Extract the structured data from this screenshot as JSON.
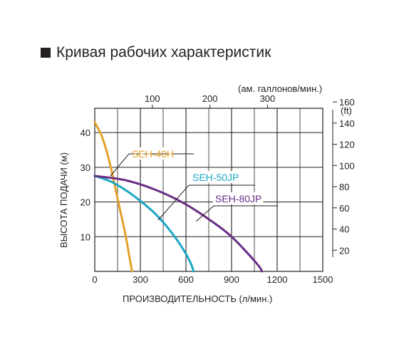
{
  "page": {
    "title": "Кривая рабочих характеристик"
  },
  "chart_data": {
    "type": "line",
    "title": "Кривая рабочих характеристик",
    "xlabel": "ПРОИЗВОДИТЕЛЬНОСТЬ (л/мин.)",
    "ylabel": "ВЫСОТА ПОДАЧИ (м)",
    "x2label": "(ам. галлонов/мин.)",
    "y2label": "(ft)",
    "xlim": [
      0,
      1500
    ],
    "ylim": [
      0,
      47
    ],
    "x2lim": [
      0,
      396
    ],
    "y2lim": [
      0,
      154
    ],
    "x_ticks": [
      "0",
      "300",
      "600",
      "900",
      "1200",
      "1500"
    ],
    "y_ticks": [
      "10",
      "20",
      "30",
      "40"
    ],
    "x2_ticks": [
      "100",
      "200",
      "300"
    ],
    "y2_ticks": [
      "20",
      "40",
      "60",
      "80",
      "100",
      "120",
      "140",
      "160"
    ],
    "grid": true,
    "series": [
      {
        "name": "SEH-40H",
        "color": "#e3a128",
        "x": [
          0,
          50,
          100,
          150,
          200,
          225,
          245
        ],
        "y": [
          43,
          38.5,
          31,
          21,
          11,
          5,
          0
        ]
      },
      {
        "name": "SEH-50JP",
        "color": "#1aa7c3",
        "x": [
          0,
          100,
          200,
          300,
          400,
          500,
          580,
          630,
          650
        ],
        "y": [
          27.5,
          26,
          23.5,
          20.3,
          16.5,
          11.5,
          6.5,
          2.5,
          0
        ]
      },
      {
        "name": "SEH-80JP",
        "color": "#6b2d85",
        "x": [
          0,
          200,
          400,
          600,
          800,
          900,
          1000,
          1080,
          1100
        ],
        "y": [
          27.5,
          26.3,
          23.5,
          19.3,
          13.5,
          10,
          5.5,
          1.5,
          0
        ]
      }
    ]
  }
}
